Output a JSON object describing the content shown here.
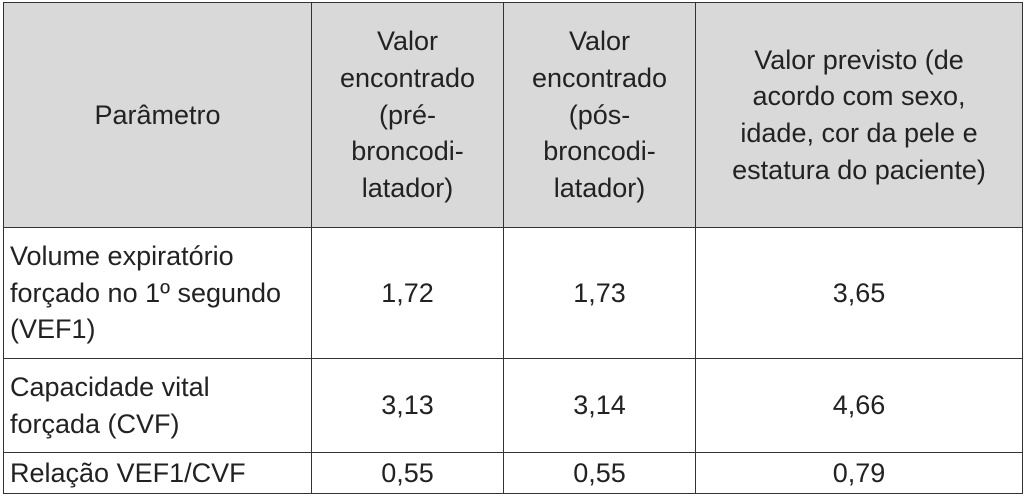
{
  "table": {
    "header": [
      [
        "Parâmetro"
      ],
      [
        "Valor",
        "encontrado",
        "(pré-",
        "broncodi-",
        "latador)"
      ],
      [
        "Valor",
        "encontrado",
        "(pós-",
        "broncodi-",
        "latador)"
      ],
      [
        "Valor previsto (de",
        "acordo com sexo,",
        "idade, cor da pele e",
        "estatura do paciente)"
      ]
    ],
    "rows": [
      [
        "Volume expiratório forçado no 1º segundo (VEF1)",
        "1,72",
        "1,73",
        "3,65"
      ],
      [
        "Capacidade vital forçada (CVF)",
        "3,13",
        "3,14",
        "4,66"
      ],
      [
        "Relação VEF1/CVF",
        "0,55",
        "0,55",
        "0,79"
      ]
    ]
  }
}
